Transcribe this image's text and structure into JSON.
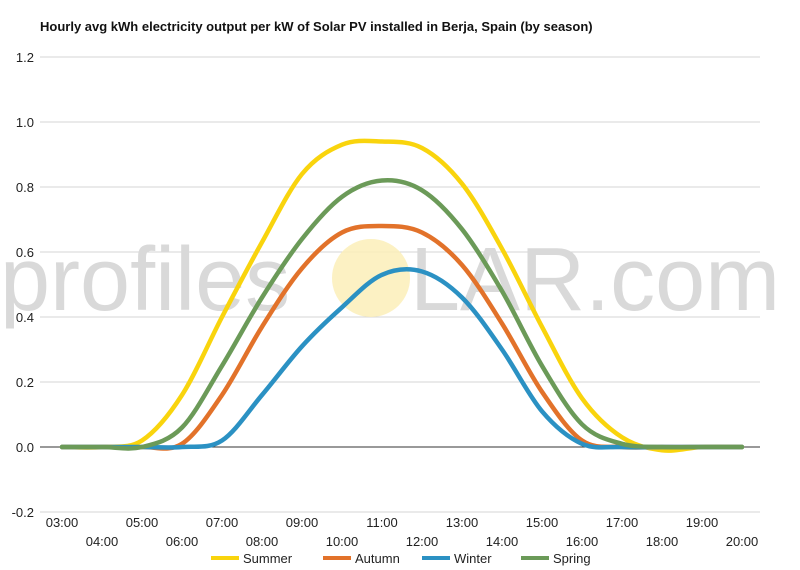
{
  "chart_data": {
    "type": "line",
    "title": "Hourly avg kWh electricity output per kW of Solar PV installed in Berja, Spain (by season)",
    "xlabel": "",
    "ylabel": "",
    "ylim": [
      -0.2,
      1.2
    ],
    "yticks": [
      "-0.2",
      "0.0",
      "0.2",
      "0.4",
      "0.6",
      "0.8",
      "1.0",
      "1.2"
    ],
    "ytick_values": [
      -0.2,
      0.0,
      0.2,
      0.4,
      0.6,
      0.8,
      1.0,
      1.2
    ],
    "x": [
      "03:00",
      "04:00",
      "05:00",
      "06:00",
      "07:00",
      "08:00",
      "09:00",
      "10:00",
      "11:00",
      "12:00",
      "13:00",
      "14:00",
      "15:00",
      "16:00",
      "17:00",
      "18:00",
      "19:00",
      "20:00"
    ],
    "grid": true,
    "legend_position": "bottom",
    "series": [
      {
        "name": "Summer",
        "color": "#f9d40d",
        "values": [
          0.0,
          0.0,
          0.02,
          0.16,
          0.4,
          0.63,
          0.84,
          0.93,
          0.94,
          0.92,
          0.81,
          0.61,
          0.37,
          0.15,
          0.03,
          -0.01,
          0.0,
          0.0
        ]
      },
      {
        "name": "Autumn",
        "color": "#e2722a",
        "values": [
          0.0,
          0.0,
          0.0,
          0.01,
          0.16,
          0.37,
          0.55,
          0.66,
          0.68,
          0.66,
          0.56,
          0.38,
          0.17,
          0.02,
          0.0,
          0.0,
          0.0,
          0.0
        ]
      },
      {
        "name": "Winter",
        "color": "#2b91c3",
        "values": [
          0.0,
          0.0,
          0.0,
          0.0,
          0.02,
          0.16,
          0.31,
          0.43,
          0.53,
          0.54,
          0.46,
          0.3,
          0.11,
          0.01,
          0.0,
          0.0,
          0.0,
          0.0
        ]
      },
      {
        "name": "Spring",
        "color": "#6b9a58",
        "values": [
          0.0,
          0.0,
          0.0,
          0.06,
          0.25,
          0.46,
          0.64,
          0.77,
          0.82,
          0.79,
          0.67,
          0.48,
          0.25,
          0.07,
          0.01,
          0.0,
          0.0,
          0.0
        ]
      }
    ]
  },
  "watermark": {
    "text_left": "profiles",
    "text_right": "LAR.com"
  }
}
